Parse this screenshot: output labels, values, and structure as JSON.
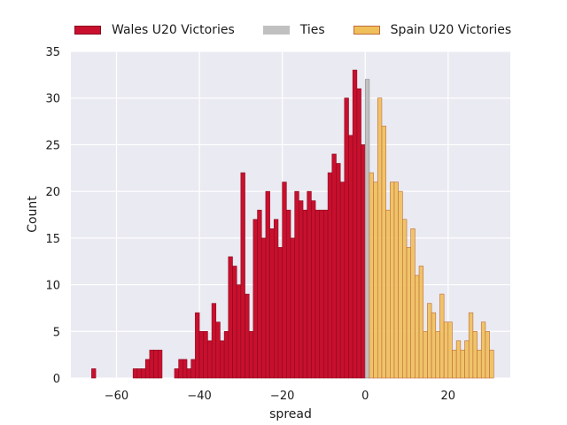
{
  "chart_data": {
    "type": "bar",
    "xlabel": "spread",
    "ylabel": "Count",
    "xlim": [
      -71,
      35
    ],
    "ylim": [
      0,
      35
    ],
    "xticks": [
      -60,
      -40,
      -20,
      0,
      20
    ],
    "yticks": [
      0,
      5,
      10,
      15,
      20,
      25,
      30,
      35
    ],
    "bin_width": 1,
    "grid": true,
    "legend_position": "top",
    "series": [
      {
        "name": "Wales U20 Victories",
        "color": "#c8102e",
        "edge": "#8b0a1e",
        "x": [
          -66,
          -56,
          -55,
          -54,
          -53,
          -52,
          -51,
          -50,
          -49,
          -48,
          -47,
          -46,
          -45,
          -44,
          -43,
          -42,
          -41,
          -40,
          -39,
          -38,
          -37,
          -36,
          -35,
          -34,
          -33,
          -32,
          -31,
          -30,
          -29,
          -28,
          -27,
          -26,
          -25,
          -24,
          -23,
          -22,
          -21,
          -20,
          -19,
          -18,
          -17,
          -16,
          -15,
          -14,
          -13,
          -12,
          -11,
          -10,
          -9,
          -8,
          -7,
          -6,
          -5,
          -4,
          -3,
          -2,
          -1
        ],
        "values": [
          1,
          1,
          1,
          1,
          2,
          3,
          3,
          3,
          0,
          0,
          0,
          1,
          2,
          2,
          1,
          2,
          7,
          5,
          5,
          4,
          8,
          6,
          4,
          5,
          13,
          12,
          10,
          22,
          9,
          5,
          17,
          18,
          15,
          20,
          16,
          17,
          14,
          21,
          18,
          15,
          20,
          19,
          18,
          20,
          19,
          18,
          18,
          18,
          22,
          24,
          23,
          21,
          30,
          26,
          33,
          31,
          25
        ]
      },
      {
        "name": "Ties",
        "color": "#c0c0c0",
        "edge": "#8c8c8c",
        "x": [
          0
        ],
        "values": [
          32
        ]
      },
      {
        "name": "Spain U20 Victories",
        "color": "#efc05a",
        "edge": "#c06a3c",
        "x": [
          1,
          2,
          3,
          4,
          5,
          6,
          7,
          8,
          9,
          10,
          11,
          12,
          13,
          14,
          15,
          16,
          17,
          18,
          19,
          20,
          21,
          22,
          23,
          24,
          25,
          26,
          27,
          28,
          29,
          30
        ],
        "values": [
          22,
          21,
          30,
          27,
          18,
          21,
          21,
          20,
          17,
          14,
          16,
          11,
          12,
          5,
          8,
          7,
          5,
          9,
          6,
          6,
          3,
          4,
          3,
          4,
          7,
          5,
          3,
          6,
          5,
          3
        ]
      }
    ]
  }
}
